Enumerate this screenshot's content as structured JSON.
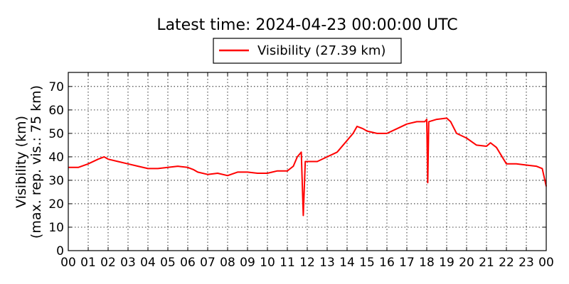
{
  "chart_data": {
    "type": "line",
    "title": "Latest time: 2024-04-23 00:00:00 UTC",
    "ylabel_line1": "Visibility (km)",
    "ylabel_line2": "(max. rep. vis.: 75 km)",
    "xlabel": "",
    "ylim": [
      0,
      76
    ],
    "xlim": [
      0,
      24
    ],
    "yticks": [
      0,
      10,
      20,
      30,
      40,
      50,
      60,
      70
    ],
    "xtick_labels": [
      "00",
      "01",
      "02",
      "03",
      "04",
      "05",
      "06",
      "07",
      "08",
      "09",
      "10",
      "11",
      "12",
      "13",
      "14",
      "15",
      "16",
      "17",
      "18",
      "19",
      "20",
      "21",
      "22",
      "23",
      "00"
    ],
    "grid": true,
    "legend": {
      "placement": "top-center",
      "label": "Visibility (27.39 km)"
    },
    "series": [
      {
        "name": "Visibility (27.39 km)",
        "color": "#ff0000",
        "x": [
          0,
          0.5,
          1,
          1.5,
          1.8,
          2,
          2.5,
          3,
          3.5,
          4,
          4.5,
          5,
          5.5,
          6,
          6.3,
          6.5,
          7,
          7.5,
          8,
          8.5,
          9,
          9.5,
          10,
          10.5,
          11,
          11.3,
          11.5,
          11.7,
          11.8,
          11.9,
          12,
          12.3,
          12.5,
          13,
          13.5,
          14,
          14.3,
          14.5,
          14.8,
          15,
          15.5,
          16,
          16.5,
          17,
          17.5,
          17.9,
          18,
          18.05,
          18.1,
          18.5,
          19,
          19.2,
          19.5,
          20,
          20.5,
          21,
          21.2,
          21.5,
          22,
          22.5,
          23,
          23.5,
          23.8,
          24
        ],
        "y": [
          35.5,
          35.5,
          37,
          39,
          40,
          39,
          38,
          37,
          36,
          35,
          35,
          35.5,
          36,
          35.5,
          34.5,
          33.5,
          32.5,
          33,
          32,
          33.5,
          33.5,
          33,
          33,
          34,
          34,
          36,
          40,
          42,
          15,
          38,
          38,
          38,
          38,
          40,
          42,
          47,
          50,
          53,
          52,
          51,
          50,
          50,
          52,
          54,
          55,
          55,
          56,
          29,
          55,
          56,
          56.5,
          55,
          50,
          48,
          45,
          44.5,
          46,
          44,
          37,
          37,
          36.5,
          36,
          35,
          27.39
        ]
      }
    ]
  }
}
